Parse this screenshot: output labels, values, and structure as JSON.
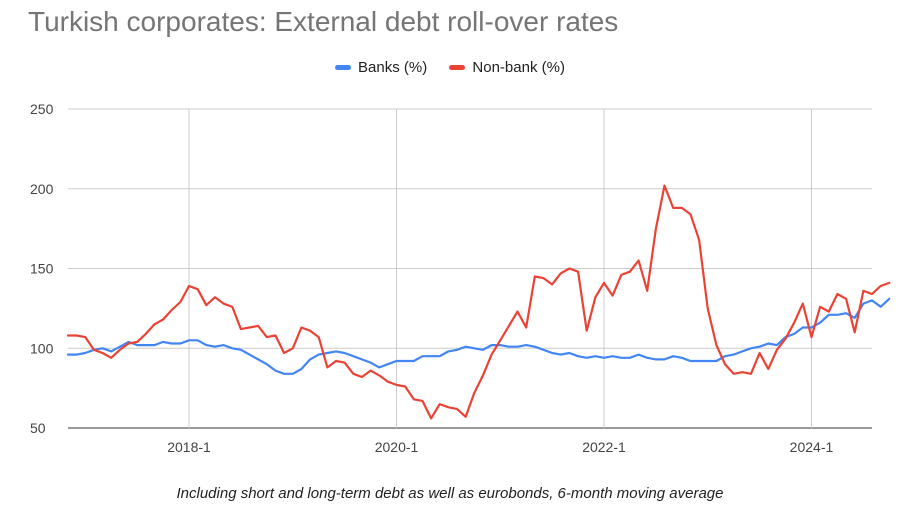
{
  "chart_data": {
    "type": "line",
    "title": "Turkish corporates: External debt roll-over rates",
    "caption": "Including short and long-term debt as well as eurobonds, 6-month moving average",
    "xlabel": "",
    "ylabel": "",
    "ylim": [
      50,
      250
    ],
    "yticks": [
      50,
      100,
      150,
      200,
      250
    ],
    "x_start": "2016-11",
    "x_end": "2024-08",
    "x_tick_labels": [
      {
        "label": "2018-1",
        "x": "2018-01"
      },
      {
        "label": "2020-1",
        "x": "2020-01"
      },
      {
        "label": "2022-1",
        "x": "2022-01"
      },
      {
        "label": "2024-1",
        "x": "2024-01"
      }
    ],
    "grid": true,
    "legend_position": "top",
    "series": [
      {
        "name": "Banks (%)",
        "color": "#4285f4",
        "points": [
          [
            "2016-11",
            96
          ],
          [
            "2016-12",
            96
          ],
          [
            "2017-01",
            97
          ],
          [
            "2017-02",
            99
          ],
          [
            "2017-03",
            100
          ],
          [
            "2017-04",
            98
          ],
          [
            "2017-05",
            101
          ],
          [
            "2017-06",
            104
          ],
          [
            "2017-07",
            102
          ],
          [
            "2017-08",
            102
          ],
          [
            "2017-09",
            102
          ],
          [
            "2017-10",
            104
          ],
          [
            "2017-11",
            103
          ],
          [
            "2017-12",
            103
          ],
          [
            "2018-01",
            105
          ],
          [
            "2018-02",
            105
          ],
          [
            "2018-03",
            102
          ],
          [
            "2018-04",
            101
          ],
          [
            "2018-05",
            102
          ],
          [
            "2018-06",
            100
          ],
          [
            "2018-07",
            99
          ],
          [
            "2018-08",
            96
          ],
          [
            "2018-09",
            93
          ],
          [
            "2018-10",
            90
          ],
          [
            "2018-11",
            86
          ],
          [
            "2018-12",
            84
          ],
          [
            "2019-01",
            84
          ],
          [
            "2019-02",
            87
          ],
          [
            "2019-03",
            93
          ],
          [
            "2019-04",
            96
          ],
          [
            "2019-05",
            97
          ],
          [
            "2019-06",
            98
          ],
          [
            "2019-07",
            97
          ],
          [
            "2019-08",
            95
          ],
          [
            "2019-09",
            93
          ],
          [
            "2019-10",
            91
          ],
          [
            "2019-11",
            88
          ],
          [
            "2019-12",
            90
          ],
          [
            "2020-01",
            92
          ],
          [
            "2020-02",
            92
          ],
          [
            "2020-03",
            92
          ],
          [
            "2020-04",
            95
          ],
          [
            "2020-05",
            95
          ],
          [
            "2020-06",
            95
          ],
          [
            "2020-07",
            98
          ],
          [
            "2020-08",
            99
          ],
          [
            "2020-09",
            101
          ],
          [
            "2020-10",
            100
          ],
          [
            "2020-11",
            99
          ],
          [
            "2020-12",
            102
          ],
          [
            "2021-01",
            102
          ],
          [
            "2021-02",
            101
          ],
          [
            "2021-03",
            101
          ],
          [
            "2021-04",
            102
          ],
          [
            "2021-05",
            101
          ],
          [
            "2021-06",
            99
          ],
          [
            "2021-07",
            97
          ],
          [
            "2021-08",
            96
          ],
          [
            "2021-09",
            97
          ],
          [
            "2021-10",
            95
          ],
          [
            "2021-11",
            94
          ],
          [
            "2021-12",
            95
          ],
          [
            "2022-01",
            94
          ],
          [
            "2022-02",
            95
          ],
          [
            "2022-03",
            94
          ],
          [
            "2022-04",
            94
          ],
          [
            "2022-05",
            96
          ],
          [
            "2022-06",
            94
          ],
          [
            "2022-07",
            93
          ],
          [
            "2022-08",
            93
          ],
          [
            "2022-09",
            95
          ],
          [
            "2022-10",
            94
          ],
          [
            "2022-11",
            92
          ],
          [
            "2022-12",
            92
          ],
          [
            "2023-01",
            92
          ],
          [
            "2023-02",
            92
          ],
          [
            "2023-03",
            95
          ],
          [
            "2023-04",
            96
          ],
          [
            "2023-05",
            98
          ],
          [
            "2023-06",
            100
          ],
          [
            "2023-07",
            101
          ],
          [
            "2023-08",
            103
          ],
          [
            "2023-09",
            102
          ],
          [
            "2023-10",
            107
          ],
          [
            "2023-11",
            109
          ],
          [
            "2023-12",
            113
          ],
          [
            "2024-01",
            113
          ],
          [
            "2024-02",
            116
          ],
          [
            "2024-03",
            121
          ],
          [
            "2024-04",
            121
          ],
          [
            "2024-05",
            122
          ],
          [
            "2024-06",
            119
          ],
          [
            "2024-07",
            128
          ],
          [
            "2024-08",
            130
          ],
          [
            "2024-09",
            126
          ],
          [
            "2024-10",
            131
          ]
        ]
      },
      {
        "name": "Non-bank (%)",
        "color": "#ea4335",
        "points": [
          [
            "2016-11",
            108
          ],
          [
            "2016-12",
            108
          ],
          [
            "2017-01",
            107
          ],
          [
            "2017-02",
            99
          ],
          [
            "2017-03",
            97
          ],
          [
            "2017-04",
            94
          ],
          [
            "2017-05",
            99
          ],
          [
            "2017-06",
            103
          ],
          [
            "2017-07",
            104
          ],
          [
            "2017-08",
            109
          ],
          [
            "2017-09",
            115
          ],
          [
            "2017-10",
            118
          ],
          [
            "2017-11",
            124
          ],
          [
            "2017-12",
            129
          ],
          [
            "2018-01",
            139
          ],
          [
            "2018-02",
            137
          ],
          [
            "2018-03",
            127
          ],
          [
            "2018-04",
            132
          ],
          [
            "2018-05",
            128
          ],
          [
            "2018-06",
            126
          ],
          [
            "2018-07",
            112
          ],
          [
            "2018-08",
            113
          ],
          [
            "2018-09",
            114
          ],
          [
            "2018-10",
            107
          ],
          [
            "2018-11",
            108
          ],
          [
            "2018-12",
            97
          ],
          [
            "2019-01",
            100
          ],
          [
            "2019-02",
            113
          ],
          [
            "2019-03",
            111
          ],
          [
            "2019-04",
            107
          ],
          [
            "2019-05",
            88
          ],
          [
            "2019-06",
            92
          ],
          [
            "2019-07",
            91
          ],
          [
            "2019-08",
            84
          ],
          [
            "2019-09",
            82
          ],
          [
            "2019-10",
            86
          ],
          [
            "2019-11",
            83
          ],
          [
            "2019-12",
            79
          ],
          [
            "2020-01",
            77
          ],
          [
            "2020-02",
            76
          ],
          [
            "2020-03",
            68
          ],
          [
            "2020-04",
            67
          ],
          [
            "2020-05",
            56
          ],
          [
            "2020-06",
            65
          ],
          [
            "2020-07",
            63
          ],
          [
            "2020-08",
            62
          ],
          [
            "2020-09",
            57
          ],
          [
            "2020-10",
            72
          ],
          [
            "2020-11",
            83
          ],
          [
            "2020-12",
            96
          ],
          [
            "2021-01",
            105
          ],
          [
            "2021-02",
            114
          ],
          [
            "2021-03",
            123
          ],
          [
            "2021-04",
            113
          ],
          [
            "2021-05",
            145
          ],
          [
            "2021-06",
            144
          ],
          [
            "2021-07",
            140
          ],
          [
            "2021-08",
            147
          ],
          [
            "2021-09",
            150
          ],
          [
            "2021-10",
            148
          ],
          [
            "2021-11",
            111
          ],
          [
            "2021-12",
            132
          ],
          [
            "2022-01",
            141
          ],
          [
            "2022-02",
            133
          ],
          [
            "2022-03",
            146
          ],
          [
            "2022-04",
            148
          ],
          [
            "2022-05",
            155
          ],
          [
            "2022-06",
            136
          ],
          [
            "2022-07",
            175
          ],
          [
            "2022-08",
            202
          ],
          [
            "2022-09",
            188
          ],
          [
            "2022-10",
            188
          ],
          [
            "2022-11",
            184
          ],
          [
            "2022-12",
            168
          ],
          [
            "2023-01",
            125
          ],
          [
            "2023-02",
            102
          ],
          [
            "2023-03",
            90
          ],
          [
            "2023-04",
            84
          ],
          [
            "2023-05",
            85
          ],
          [
            "2023-06",
            84
          ],
          [
            "2023-07",
            97
          ],
          [
            "2023-08",
            87
          ],
          [
            "2023-09",
            99
          ],
          [
            "2023-10",
            106
          ],
          [
            "2023-11",
            116
          ],
          [
            "2023-12",
            128
          ],
          [
            "2024-01",
            107
          ],
          [
            "2024-02",
            126
          ],
          [
            "2024-03",
            123
          ],
          [
            "2024-04",
            134
          ],
          [
            "2024-05",
            131
          ],
          [
            "2024-06",
            110
          ],
          [
            "2024-07",
            136
          ],
          [
            "2024-08",
            134
          ],
          [
            "2024-09",
            139
          ],
          [
            "2024-10",
            141
          ]
        ]
      }
    ]
  }
}
